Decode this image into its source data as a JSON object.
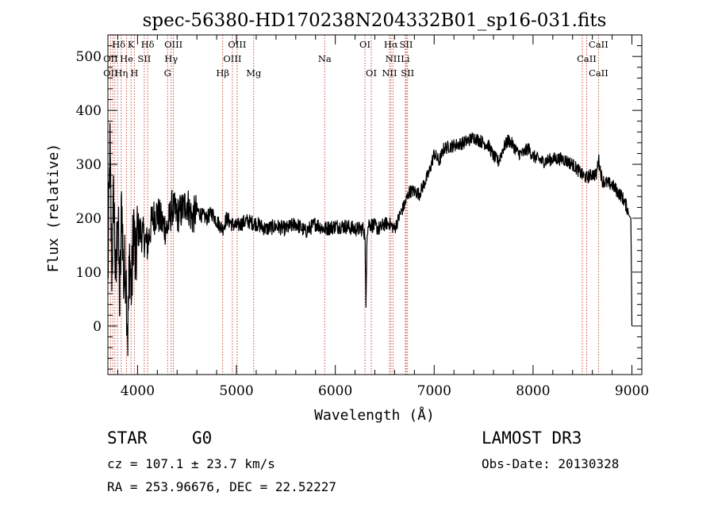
{
  "chart_data": {
    "type": "line",
    "title": "spec-56380-HD170238N204332B01_sp16-031.fits",
    "xlabel": "Wavelength (Å)",
    "ylabel": "Flux (relative)",
    "xlim": [
      3700,
      9100
    ],
    "ylim": [
      -90,
      540
    ],
    "x_ticks": [
      4000,
      5000,
      6000,
      7000,
      8000,
      9000
    ],
    "y_ticks": [
      0,
      100,
      200,
      300,
      400,
      500
    ],
    "series": [
      {
        "name": "flux",
        "x": [
          3700,
          3720,
          3740,
          3760,
          3780,
          3800,
          3820,
          3840,
          3860,
          3880,
          3900,
          3920,
          3940,
          3960,
          3980,
          4000,
          4050,
          4100,
          4150,
          4200,
          4250,
          4300,
          4350,
          4400,
          4450,
          4500,
          4550,
          4600,
          4650,
          4700,
          4750,
          4800,
          4861,
          4900,
          4950,
          5000,
          5100,
          5200,
          5300,
          5400,
          5500,
          5600,
          5700,
          5800,
          5890,
          6000,
          6100,
          6200,
          6280,
          6300,
          6310,
          6320,
          6340,
          6400,
          6450,
          6500,
          6550,
          6600,
          6650,
          6700,
          6750,
          6800,
          6850,
          6900,
          6950,
          7000,
          7050,
          7100,
          7200,
          7300,
          7400,
          7450,
          7500,
          7550,
          7600,
          7650,
          7700,
          7750,
          7800,
          7850,
          7900,
          7950,
          8000,
          8100,
          8200,
          8300,
          8400,
          8500,
          8542,
          8600,
          8640,
          8662,
          8700,
          8750,
          8800,
          8850,
          8900,
          8950,
          8970,
          8990,
          9000
        ],
        "y": [
          80,
          330,
          100,
          250,
          60,
          230,
          30,
          240,
          80,
          120,
          -20,
          130,
          60,
          200,
          100,
          180,
          170,
          150,
          200,
          210,
          190,
          180,
          220,
          205,
          215,
          230,
          200,
          215,
          205,
          200,
          210,
          195,
          180,
          200,
          190,
          185,
          195,
          190,
          180,
          185,
          180,
          190,
          175,
          190,
          180,
          185,
          185,
          180,
          180,
          170,
          35,
          175,
          190,
          185,
          180,
          190,
          190,
          180,
          205,
          225,
          250,
          250,
          245,
          265,
          285,
          320,
          305,
          330,
          335,
          340,
          350,
          345,
          340,
          335,
          315,
          305,
          330,
          345,
          335,
          320,
          320,
          330,
          315,
          305,
          310,
          310,
          300,
          280,
          275,
          282,
          280,
          310,
          270,
          265,
          262,
          250,
          240,
          220,
          205,
          200,
          0
        ]
      }
    ],
    "line_labels": [
      {
        "name": "Hδ",
        "x": 3810,
        "row": 0
      },
      {
        "name": "K",
        "x": 3934,
        "row": 0
      },
      {
        "name": "Hδ",
        "x": 4102,
        "row": 0
      },
      {
        "name": "OIII",
        "x": 4363,
        "row": 0
      },
      {
        "name": "OIII",
        "x": 5007,
        "row": 0
      },
      {
        "name": "OI",
        "x": 6300,
        "row": 0
      },
      {
        "name": "Hα",
        "x": 6563,
        "row": 0
      },
      {
        "name": "SII",
        "x": 6717,
        "row": 0
      },
      {
        "name": "CaII",
        "x": 8662,
        "row": 0
      },
      {
        "name": "OII",
        "x": 3727,
        "row": 1
      },
      {
        "name": "He",
        "x": 3889,
        "row": 1
      },
      {
        "name": "SII",
        "x": 4068,
        "row": 1
      },
      {
        "name": "Hγ",
        "x": 4340,
        "row": 1
      },
      {
        "name": "OIII",
        "x": 4959,
        "row": 1
      },
      {
        "name": "Na",
        "x": 5893,
        "row": 1
      },
      {
        "name": "NII",
        "x": 6583,
        "row": 1
      },
      {
        "name": "Li",
        "x": 6708,
        "row": 1
      },
      {
        "name": "CaII",
        "x": 8542,
        "row": 1
      },
      {
        "name": "OII",
        "x": 3727,
        "row": 2
      },
      {
        "name": "Hη",
        "x": 3835,
        "row": 2
      },
      {
        "name": "H",
        "x": 3968,
        "row": 2
      },
      {
        "name": "G",
        "x": 4304,
        "row": 2
      },
      {
        "name": "Hβ",
        "x": 4861,
        "row": 2
      },
      {
        "name": "Mg",
        "x": 5175,
        "row": 2
      },
      {
        "name": "OI",
        "x": 6364,
        "row": 2
      },
      {
        "name": "NII",
        "x": 6548,
        "row": 2
      },
      {
        "name": "SII",
        "x": 6731,
        "row": 2
      },
      {
        "name": "CaII",
        "x": 8662,
        "row": 2
      }
    ],
    "line_markers_x": [
      3727,
      3750,
      3771,
      3798,
      3835,
      3889,
      3934,
      3968,
      4068,
      4102,
      4304,
      4340,
      4363,
      4861,
      4959,
      5007,
      5175,
      5893,
      6300,
      6364,
      6548,
      6563,
      6583,
      6708,
      6717,
      6731,
      8498,
      8542,
      8662
    ]
  },
  "info": {
    "object_class": "STAR",
    "subclass": "G0",
    "survey": "LAMOST DR3",
    "redshift": "cz = 107.1 ± 23.7 km/s",
    "obs_date": "Obs-Date: 20130328",
    "coords": "RA = 253.96676, DEC =  22.52227"
  },
  "colors": {
    "marker_line": "#c0392b",
    "spectrum": "#000000",
    "axes": "#000000"
  }
}
